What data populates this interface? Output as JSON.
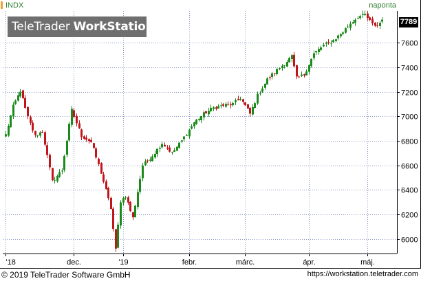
{
  "header": {
    "symbol": "INDX",
    "interval": "naponta",
    "symbol_marker_color": "#f0a030",
    "label_color": "#2e7d32"
  },
  "watermark": {
    "brand_regular": "TeleTrader",
    "brand_bold": "WorkStation"
  },
  "footer": {
    "copyright": "© 2019 TeleTrader Software GmbH",
    "url": "https://workstation.teletrader.com"
  },
  "colors": {
    "up": "#1b8a1b",
    "down": "#c0151b",
    "grid": "#8a94c8",
    "axis": "#000000"
  },
  "chart_data": {
    "type": "candlestick",
    "title": "INDX",
    "last_price": "7789",
    "y_axis": {
      "position": "right",
      "ylim": [
        5880,
        7860
      ],
      "ticks": [
        6000,
        6200,
        6400,
        6600,
        6800,
        7000,
        7200,
        7400,
        7600
      ]
    },
    "x_axis": {
      "xlim": [
        0,
        159
      ],
      "ticks": [
        {
          "label": "'18",
          "index": 0
        },
        {
          "label": "dec.",
          "index": 28
        },
        {
          "label": "'19",
          "index": 48
        },
        {
          "label": "febr.",
          "index": 75
        },
        {
          "label": "márc.",
          "index": 98
        },
        {
          "label": "ápr.",
          "index": 124
        },
        {
          "label": "máj.",
          "index": 148
        }
      ]
    },
    "grid": true,
    "anchors": [
      [
        0,
        6850
      ],
      [
        3,
        7080
      ],
      [
        6,
        7210
      ],
      [
        9,
        6990
      ],
      [
        12,
        6840
      ],
      [
        15,
        6880
      ],
      [
        19,
        6470
      ],
      [
        23,
        6560
      ],
      [
        27,
        7050
      ],
      [
        31,
        6840
      ],
      [
        35,
        6790
      ],
      [
        39,
        6540
      ],
      [
        43,
        6250
      ],
      [
        45,
        5910
      ],
      [
        47,
        6310
      ],
      [
        49,
        6350
      ],
      [
        52,
        6170
      ],
      [
        56,
        6600
      ],
      [
        60,
        6680
      ],
      [
        64,
        6780
      ],
      [
        68,
        6700
      ],
      [
        72,
        6800
      ],
      [
        77,
        6950
      ],
      [
        81,
        7020
      ],
      [
        85,
        7070
      ],
      [
        89,
        7090
      ],
      [
        93,
        7100
      ],
      [
        96,
        7150
      ],
      [
        100,
        7020
      ],
      [
        103,
        7170
      ],
      [
        107,
        7300
      ],
      [
        111,
        7380
      ],
      [
        115,
        7450
      ],
      [
        117,
        7490
      ],
      [
        119,
        7310
      ],
      [
        122,
        7340
      ],
      [
        126,
        7510
      ],
      [
        130,
        7580
      ],
      [
        134,
        7620
      ],
      [
        138,
        7690
      ],
      [
        141,
        7760
      ],
      [
        144,
        7810
      ],
      [
        147,
        7830
      ],
      [
        150,
        7750
      ],
      [
        152,
        7740
      ],
      [
        154,
        7789
      ]
    ],
    "volatility": 30
  }
}
